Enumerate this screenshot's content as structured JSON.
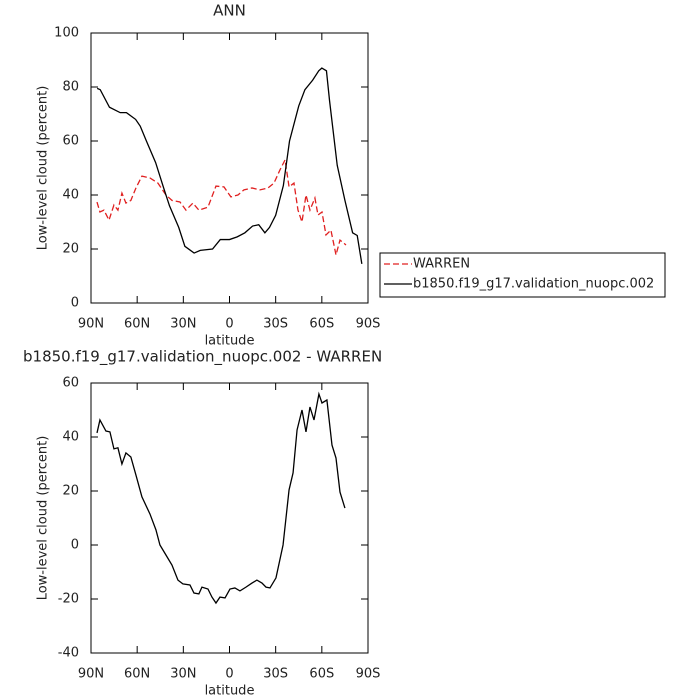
{
  "chart_data": [
    {
      "type": "line",
      "title": "ANN",
      "xlabel": "latitude",
      "ylabel": "Low-level cloud (percent)",
      "xlim": [
        90,
        -90
      ],
      "xticks": [
        {
          "value": 90,
          "label": "90N"
        },
        {
          "value": 60,
          "label": "60N"
        },
        {
          "value": 30,
          "label": "30N"
        },
        0,
        {
          "value": -30,
          "label": "30S"
        },
        {
          "value": -60,
          "label": "60S"
        },
        {
          "value": -90,
          "label": "90S"
        }
      ],
      "ylim": [
        0,
        100
      ],
      "yticks": [
        0,
        20,
        40,
        60,
        80,
        100
      ],
      "legend": "right",
      "series": [
        {
          "name": "WARREN",
          "color": "#e02020",
          "dashed": true,
          "x": [
            86.1,
            84.2,
            81.6,
            78.3,
            75.1,
            72.5,
            69.9,
            67.3,
            64.1,
            60.8,
            56.9,
            51.7,
            46.5,
            41.3,
            37.4,
            32.2,
            28.3,
            23.8,
            19.9,
            14,
            8.8,
            3.6,
            -0.9,
            -5.5,
            -9.4,
            -14.6,
            -19.8,
            -25,
            -28.9,
            -32.8,
            -36.1,
            -38.7,
            -41.9,
            -44.5,
            -47.1,
            -49.7,
            -52.3,
            -55.5,
            -57.5,
            -60.1,
            -62.7,
            -65.9,
            -69.2,
            -71.8,
            -75.7
          ],
          "values": [
            37.4,
            33.7,
            34.4,
            30.7,
            36.3,
            34.4,
            40.7,
            37,
            38,
            42.6,
            47,
            46.3,
            44.4,
            40,
            38,
            37.4,
            34.4,
            37,
            34.4,
            35.5,
            43.3,
            43,
            39.3,
            40,
            41.9,
            42.6,
            41.9,
            42.6,
            44.4,
            49.3,
            53,
            43,
            44.4,
            34.4,
            30,
            40,
            34.4,
            38.9,
            32.6,
            33.7,
            25.2,
            27,
            17.8,
            23.3,
            21.5
          ]
        },
        {
          "name": "b1850.f19_g17.validation_nuopc.002",
          "color": "#000000",
          "dashed": false,
          "x": [
            86,
            84,
            78,
            71,
            67,
            61,
            58,
            54,
            48,
            43,
            39,
            33,
            29,
            23,
            19,
            11,
            6,
            0,
            -5,
            -10,
            -15,
            -19,
            -23,
            -26,
            -30,
            -35,
            -39,
            -45,
            -49,
            -54,
            -58,
            -60,
            -63,
            -65,
            -70,
            -75,
            -80,
            -83,
            -86
          ],
          "values": [
            79.5,
            79,
            72.5,
            70.5,
            70.5,
            68,
            65.5,
            60,
            52,
            43,
            36,
            28,
            21,
            18.5,
            19.5,
            20,
            23.5,
            23.5,
            24.5,
            26,
            28.5,
            29,
            26,
            28,
            32.5,
            43.5,
            60,
            73,
            79,
            82.5,
            86,
            87,
            86,
            75,
            51,
            38,
            26,
            25,
            14.5
          ]
        }
      ]
    },
    {
      "type": "line",
      "title": "b1850.f19_g17.validation_nuopc.002 - WARREN",
      "xlabel": "latitude",
      "ylabel": "Low-level cloud (percent)",
      "xlim": [
        90,
        -90
      ],
      "xticks": [
        {
          "value": 90,
          "label": "90N"
        },
        {
          "value": 60,
          "label": "60N"
        },
        {
          "value": 30,
          "label": "30N"
        },
        0,
        {
          "value": -30,
          "label": "30S"
        },
        {
          "value": -60,
          "label": "60S"
        },
        {
          "value": -90,
          "label": "90S"
        }
      ],
      "ylim": [
        -40,
        60
      ],
      "yticks": [
        -40,
        -20,
        0,
        20,
        40,
        60
      ],
      "series": [
        {
          "color": "#000000",
          "dashed": false,
          "x": [
            86.1,
            84.2,
            80.3,
            77.7,
            75.1,
            72.5,
            69.9,
            67.3,
            64.1,
            60.8,
            56.9,
            51.7,
            47.8,
            45.2,
            41.3,
            37.4,
            33.5,
            30.3,
            25.7,
            23.1,
            19.9,
            17.9,
            14,
            11.4,
            8.8,
            6.2,
            2.9,
            -0.3,
            -3.5,
            -6.8,
            -10.7,
            -14.6,
            -17.8,
            -21.1,
            -23.7,
            -26.3,
            -30.2,
            -34.8,
            -38.7,
            -41.3,
            -43.9,
            -47.1,
            -49.7,
            -52.3,
            -54.9,
            -58.1,
            -60.1,
            -63.3,
            -66.6,
            -69.2,
            -71.8,
            -75
          ],
          "values": [
            41.5,
            46.3,
            42.2,
            41.9,
            35.6,
            36,
            30,
            34.1,
            32.6,
            25.9,
            17.8,
            11.5,
            5.6,
            0,
            -3.7,
            -7.4,
            -13,
            -14.4,
            -14.8,
            -17.8,
            -18.1,
            -15.6,
            -16.3,
            -19.3,
            -21.5,
            -19.3,
            -19.6,
            -16.3,
            -15.9,
            -17,
            -15.6,
            -14.1,
            -13,
            -14.1,
            -15.6,
            -15.9,
            -12.2,
            0,
            20.4,
            26.7,
            42.6,
            50,
            41.9,
            51.1,
            46.3,
            55.9,
            52.6,
            53.7,
            37,
            32.2,
            19.6,
            13.7
          ]
        }
      ]
    }
  ]
}
